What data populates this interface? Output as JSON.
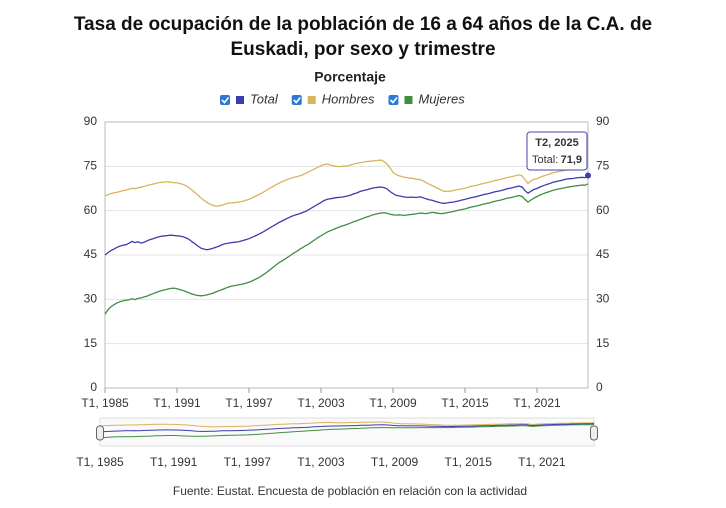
{
  "chart_data": {
    "type": "line",
    "title": "Tasa de ocupación de la población de 16 a 64 años de la C.A. de Euskadi, por sexo y trimestre",
    "subtitle": "Porcentaje",
    "source": "Fuente: Eustat. Encuesta de población en relación con la actividad",
    "legend": "top",
    "grid": true,
    "ylim": [
      0,
      90
    ],
    "yticks": [
      0,
      15,
      30,
      45,
      60,
      75,
      90
    ],
    "y2lim": [
      0,
      90
    ],
    "y2ticks": [
      0,
      15,
      30,
      45,
      60,
      75,
      90
    ],
    "categories": [
      "T1, 1985",
      null,
      null,
      null,
      null,
      null,
      null,
      null,
      null,
      null,
      null,
      null,
      null,
      null,
      null,
      null,
      null,
      null,
      null,
      null,
      null,
      null,
      null,
      null,
      "T1, 1991",
      null,
      null,
      null,
      null,
      null,
      null,
      null,
      null,
      null,
      null,
      null,
      null,
      null,
      null,
      null,
      null,
      null,
      null,
      null,
      null,
      null,
      null,
      null,
      "T1, 1997",
      null,
      null,
      null,
      null,
      null,
      null,
      null,
      null,
      null,
      null,
      null,
      null,
      null,
      null,
      null,
      null,
      null,
      null,
      null,
      null,
      null,
      null,
      null,
      "T1, 2003",
      null,
      null,
      null,
      null,
      null,
      null,
      null,
      null,
      null,
      null,
      null,
      null,
      null,
      null,
      null,
      null,
      null,
      null,
      null,
      null,
      null,
      null,
      null,
      "T1, 2009",
      null,
      null,
      null,
      null,
      null,
      null,
      null,
      null,
      null,
      null,
      null,
      null,
      null,
      null,
      null,
      null,
      null,
      null,
      null,
      null,
      null,
      null,
      null,
      "T1, 2015",
      null,
      null,
      null,
      null,
      null,
      null,
      null,
      null,
      null,
      null,
      null,
      null,
      null,
      null,
      null,
      null,
      null,
      null,
      null,
      null,
      null,
      null,
      null,
      "T1, 2021",
      null,
      null,
      null,
      null,
      null,
      null,
      null,
      null,
      null,
      null,
      null,
      null,
      null,
      null,
      null,
      null,
      "T2, 2025"
    ],
    "series": [
      {
        "name": "Total",
        "color": "#3c3caf",
        "values": [
          45,
          45.8,
          46.5,
          47,
          47.6,
          48,
          48.3,
          48.5,
          49,
          49.6,
          49.2,
          49.5,
          49,
          49.3,
          49.8,
          50.2,
          50.5,
          50.9,
          51.2,
          51.4,
          51.5,
          51.6,
          51.7,
          51.6,
          51.5,
          51.4,
          51.2,
          50.8,
          50.3,
          49.5,
          48.8,
          48,
          47.3,
          47,
          46.8,
          47,
          47.3,
          47.6,
          48,
          48.5,
          48.8,
          49,
          49.2,
          49.3,
          49.4,
          49.6,
          49.9,
          50.2,
          50.5,
          51,
          51.4,
          51.9,
          52.4,
          53,
          53.6,
          54.2,
          54.8,
          55.4,
          56,
          56.5,
          57,
          57.5,
          58,
          58.4,
          58.7,
          59,
          59.4,
          59.8,
          60.4,
          61,
          61.6,
          62.2,
          62.8,
          63.4,
          63.8,
          64,
          64.2,
          64.4,
          64.5,
          64.6,
          64.8,
          65,
          65.3,
          65.7,
          66,
          66.5,
          66.8,
          67,
          67.3,
          67.6,
          67.8,
          67.9,
          68,
          67.8,
          67.4,
          66.5,
          65.8,
          65.2,
          65,
          64.8,
          64.6,
          64.5,
          64.6,
          64.5,
          64.5,
          64.7,
          64.4,
          64,
          63.7,
          63.5,
          63.2,
          62.9,
          62.6,
          62.5,
          62.6,
          62.8,
          62.9,
          63.1,
          63.3,
          63.6,
          63.8,
          64.1,
          64.4,
          64.6,
          64.8,
          65.1,
          65.4,
          65.6,
          65.8,
          66.1,
          66.4,
          66.6,
          66.8,
          67.1,
          67.4,
          67.6,
          67.8,
          68.1,
          68.3,
          68,
          66.8,
          65.9,
          66.6,
          67.2,
          67.5,
          68,
          68.4,
          68.8,
          69.1,
          69.5,
          69.8,
          70,
          70.2,
          70.5,
          70.7,
          70.8,
          70.9,
          71.1,
          71.2,
          71.3,
          71.2,
          71.9
        ]
      },
      {
        "name": "Hombres",
        "color": "#d9b45c",
        "values": [
          65,
          65.4,
          65.8,
          66,
          66.2,
          66.5,
          66.8,
          67,
          67.2,
          67.6,
          67.4,
          67.8,
          67.9,
          68.2,
          68.5,
          68.8,
          69,
          69.3,
          69.5,
          69.6,
          69.7,
          69.8,
          69.6,
          69.5,
          69.4,
          69.2,
          68.9,
          68.4,
          67.8,
          67,
          66.1,
          65.2,
          64.3,
          63.5,
          62.8,
          62.2,
          61.8,
          61.5,
          61.6,
          61.9,
          62.2,
          62.5,
          62.6,
          62.7,
          62.8,
          63,
          63.2,
          63.5,
          63.8,
          64.3,
          64.8,
          65.3,
          65.8,
          66.4,
          67,
          67.6,
          68.2,
          68.8,
          69.3,
          69.8,
          70.2,
          70.6,
          71,
          71.3,
          71.5,
          71.8,
          72.2,
          72.7,
          73.2,
          73.7,
          74.2,
          74.7,
          75.2,
          75.6,
          75.8,
          75.5,
          75.2,
          75,
          74.9,
          75,
          75,
          75.2,
          75.5,
          75.8,
          76,
          76.2,
          76.4,
          76.6,
          76.7,
          76.8,
          76.9,
          77,
          77.1,
          76.6,
          75.8,
          74.5,
          73,
          72.2,
          71.8,
          71.5,
          71.3,
          71.1,
          71,
          70.8,
          70.6,
          70.5,
          70.1,
          69.5,
          69,
          68.5,
          68,
          67.5,
          67,
          66.6,
          66.5,
          66.6,
          66.8,
          67,
          67.2,
          67.4,
          67.6,
          67.9,
          68.2,
          68.4,
          68.6,
          68.9,
          69.2,
          69.4,
          69.6,
          69.9,
          70.2,
          70.4,
          70.6,
          70.9,
          71.2,
          71.4,
          71.6,
          71.9,
          72.1,
          71.8,
          70.5,
          69.2,
          70.1,
          70.6,
          70.8,
          71.3,
          71.7,
          72,
          72.3,
          72.7,
          73,
          73.2,
          73.4,
          73.6,
          73.8,
          73.9,
          74,
          74.1,
          74.2,
          74.3,
          74.2,
          74.7
        ]
      },
      {
        "name": "Mujeres",
        "color": "#3f8f3f",
        "values": [
          25,
          26.5,
          27.5,
          28.2,
          28.8,
          29.2,
          29.5,
          29.7,
          29.8,
          30.2,
          29.9,
          30.3,
          30.5,
          30.8,
          31.1,
          31.5,
          31.9,
          32.3,
          32.7,
          33,
          33.2,
          33.5,
          33.7,
          33.8,
          33.6,
          33.3,
          33,
          32.6,
          32.2,
          31.8,
          31.5,
          31.3,
          31.2,
          31.3,
          31.5,
          31.8,
          32.1,
          32.5,
          32.9,
          33.3,
          33.7,
          34.1,
          34.4,
          34.6,
          34.8,
          35,
          35.2,
          35.5,
          35.8,
          36.2,
          36.7,
          37.2,
          37.8,
          38.5,
          39.2,
          40,
          40.8,
          41.6,
          42.4,
          43,
          43.6,
          44.3,
          45,
          45.7,
          46.3,
          47,
          47.6,
          48.2,
          48.8,
          49.5,
          50.2,
          50.9,
          51.5,
          52.1,
          52.7,
          53.2,
          53.6,
          54,
          54.4,
          54.8,
          55.1,
          55.5,
          55.9,
          56.3,
          56.6,
          57,
          57.4,
          57.8,
          58.1,
          58.5,
          58.8,
          59,
          59.2,
          59.3,
          59.1,
          58.8,
          58.6,
          58.5,
          58.6,
          58.5,
          58.4,
          58.6,
          58.7,
          58.8,
          59,
          59.2,
          59.1,
          59,
          59.2,
          59.4,
          59.3,
          59.1,
          59,
          59.1,
          59.3,
          59.5,
          59.7,
          60,
          60.2,
          60.4,
          60.6,
          60.9,
          61.2,
          61.4,
          61.6,
          61.9,
          62.2,
          62.4,
          62.6,
          62.9,
          63.2,
          63.4,
          63.6,
          63.9,
          64.2,
          64.4,
          64.6,
          64.9,
          65.1,
          64.8,
          63.8,
          62.9,
          63.6,
          64.3,
          64.8,
          65.3,
          65.7,
          66.1,
          66.4,
          66.8,
          67.1,
          67.3,
          67.5,
          67.7,
          67.9,
          68.1,
          68.2,
          68.4,
          68.5,
          68.7,
          68.6,
          69.1
        ]
      }
    ],
    "tooltip": {
      "label": "Total:",
      "value_label": "71,9"
    }
  }
}
